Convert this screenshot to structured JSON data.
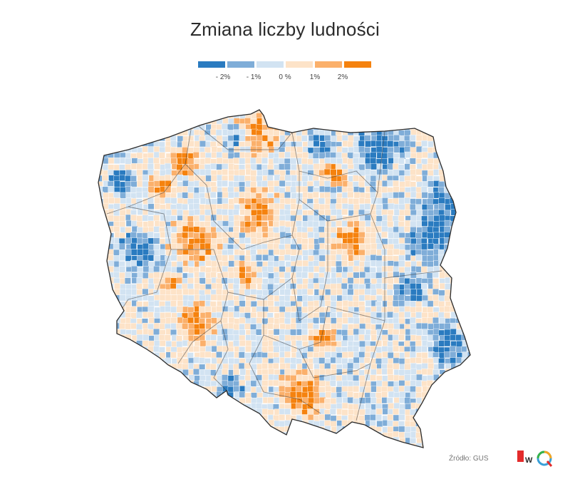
{
  "title": "Zmiana liczby ludności",
  "legend": {
    "colors": [
      "#2a7bc0",
      "#7fadd8",
      "#d2e3f2",
      "#fde3c8",
      "#fbb06b",
      "#f5820e"
    ],
    "labels": [
      "- 2%",
      "- 1%",
      "0 %",
      "1%",
      "2%"
    ]
  },
  "map": {
    "region": "Poland",
    "unit": "municipality",
    "palette": {
      "strong_decline": "#2a7bc0",
      "decline": "#7fadd8",
      "slight_decline": "#d2e3f2",
      "slight_growth": "#fde3c8",
      "growth": "#fbb06b",
      "strong_growth": "#f5820e"
    }
  },
  "footer": {
    "source": "Źródło: GUS",
    "logo_colors": [
      "#e32b2b",
      "#2a2a2a",
      "#3aa0d8",
      "#f5a623",
      "#37b34a"
    ]
  }
}
